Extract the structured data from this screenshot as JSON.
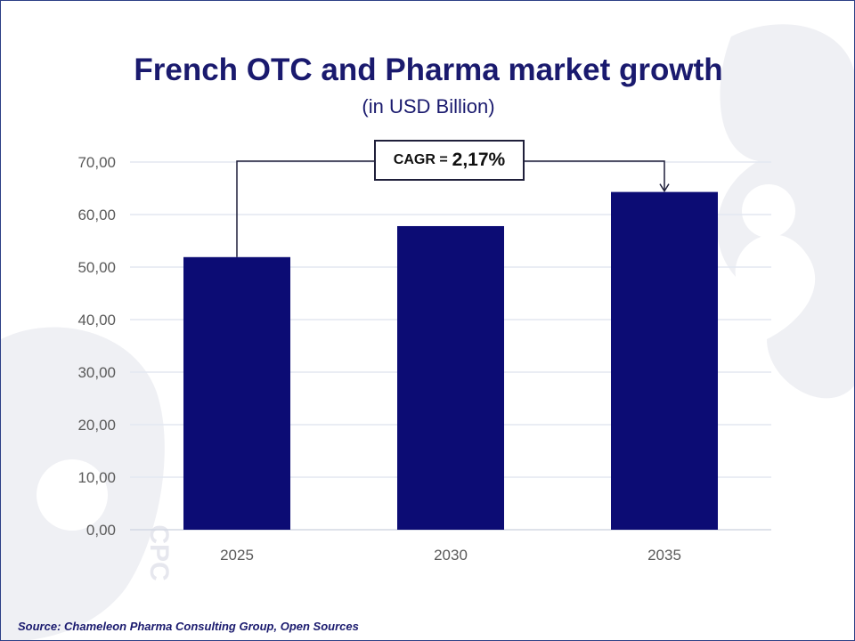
{
  "title": "French OTC and Pharma market growth",
  "subtitle": "(in USD Billion)",
  "cagr": {
    "label": "CAGR =",
    "value": "2,17%"
  },
  "source": "Source: Chameleon Pharma Consulting Group, Open Sources",
  "watermark_text": "CPC",
  "colors": {
    "bar": "#0c0c74",
    "grid": "#e3e7f1",
    "title": "#1a1a6e",
    "tick": "#5a5a5a",
    "frame": "#2c3f86",
    "watermark": "#f0f1f5"
  },
  "chart_data": {
    "type": "bar",
    "title": "French OTC and Pharma market growth",
    "subtitle": "(in USD Billion)",
    "categories": [
      "2025",
      "2030",
      "2035"
    ],
    "values": [
      51.9,
      57.8,
      64.3
    ],
    "ylim": [
      0,
      70
    ],
    "yticks": [
      "0,00",
      "10,00",
      "20,00",
      "30,00",
      "40,00",
      "50,00",
      "60,00",
      "70,00"
    ],
    "xlabel": "",
    "ylabel": "",
    "grid": true,
    "annotation": "CAGR = 2,17%"
  }
}
